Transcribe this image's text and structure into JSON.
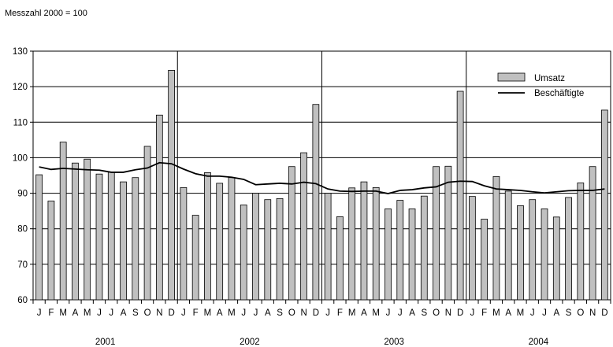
{
  "chart_data": {
    "type": "bar",
    "subtitle": "Messzahl 2000 = 100",
    "ylim": [
      60,
      130
    ],
    "yticks": [
      60,
      70,
      80,
      90,
      100,
      110,
      120,
      130
    ],
    "grid": true,
    "legend_position": "top-right",
    "month_labels": [
      "J",
      "F",
      "M",
      "A",
      "M",
      "J",
      "J",
      "A",
      "S",
      "O",
      "N",
      "D"
    ],
    "years": [
      "2001",
      "2002",
      "2003",
      "2004"
    ],
    "series": [
      {
        "name": "Umsatz",
        "kind": "bar",
        "color": "#c0c0c0",
        "values": [
          95.2,
          87.8,
          104.4,
          98.5,
          99.6,
          95.4,
          96.0,
          93.2,
          94.4,
          103.2,
          112.0,
          124.6,
          91.6,
          83.8,
          95.8,
          92.8,
          94.4,
          86.7,
          90.0,
          88.2,
          88.5,
          97.5,
          101.4,
          115.0,
          90.0,
          83.4,
          91.5,
          93.2,
          91.6,
          85.6,
          88.0,
          85.6,
          89.2,
          97.5,
          97.6,
          118.7,
          89.1,
          82.7,
          94.7,
          90.6,
          86.5,
          88.2,
          85.6,
          83.3,
          88.8,
          92.9,
          97.5,
          113.4
        ]
      },
      {
        "name": "Beschäftigte",
        "kind": "line",
        "color": "#000000",
        "values": [
          97.4,
          96.7,
          97.0,
          96.8,
          96.6,
          96.5,
          95.9,
          95.9,
          96.6,
          97.1,
          98.6,
          98.3,
          96.8,
          95.5,
          94.8,
          94.8,
          94.5,
          93.9,
          92.4,
          92.6,
          92.8,
          92.6,
          93.1,
          92.7,
          91.2,
          90.6,
          90.5,
          90.6,
          90.6,
          89.9,
          90.8,
          91.0,
          91.5,
          91.8,
          93.1,
          93.4,
          93.3,
          92.1,
          91.2,
          91.0,
          90.8,
          90.4,
          90.1,
          90.4,
          90.7,
          90.8,
          90.8,
          91.2
        ]
      }
    ]
  }
}
